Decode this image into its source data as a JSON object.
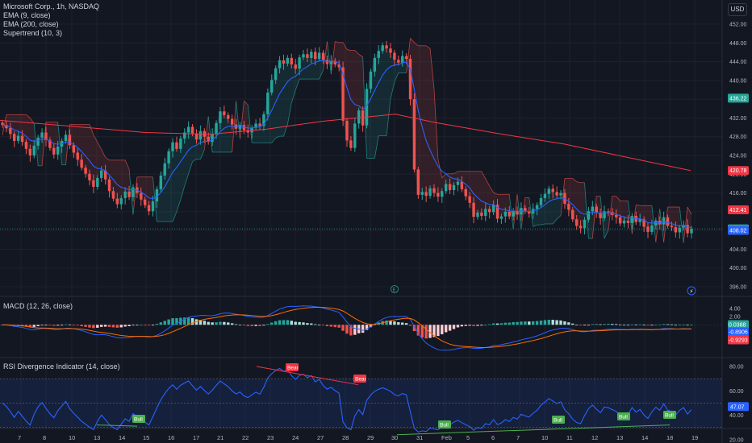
{
  "header": {
    "symbol_line": "Microsoft Corp., 1h, NASDAQ",
    "indicators": [
      "EMA (9, close)",
      "EMA (200, close)",
      "Supertrend (10, 3)"
    ],
    "currency_button": "USD"
  },
  "macd_pane": {
    "title": "MACD (12, 26, close)"
  },
  "rsi_pane": {
    "title": "RSI Divergence Indicator (14, close)"
  },
  "colors": {
    "bg": "#131722",
    "up": "#26a69a",
    "down": "#ef5350",
    "ema9": "#2962ff",
    "ema200": "#f23645",
    "rsi": "#2962ff",
    "bull": "#4caf50",
    "bear": "#f23645"
  },
  "chart_data": [
    {
      "type": "candlestick",
      "x_tick_labels": [
        "7",
        "8",
        "10",
        "13",
        "14",
        "15",
        "16",
        "17",
        "21",
        "22",
        "23",
        "24",
        "27",
        "28",
        "29",
        "30",
        "31",
        "Feb",
        "5",
        "6",
        "7",
        "10",
        "11",
        "12",
        "13",
        "14",
        "18",
        "19"
      ],
      "y_tick_labels": [
        "452.00",
        "448.00",
        "444.00",
        "440.00",
        "436.00",
        "432.00",
        "428.00",
        "424.00",
        "420.00",
        "416.00",
        "412.00",
        "408.00",
        "404.00",
        "400.00",
        "396.00"
      ],
      "ylim": [
        394,
        454
      ],
      "price_tags": [
        {
          "value": 436.22,
          "label": "436.22",
          "color": "#26a69a"
        },
        {
          "value": 420.78,
          "label": "420.78",
          "color": "#f23645"
        },
        {
          "value": 412.41,
          "label": "412.41",
          "color": "#f23645"
        },
        {
          "value": 408.35,
          "label": "408.35",
          "color": "#26a69a"
        },
        {
          "value": 408.02,
          "label": "408.02",
          "color": "#2962ff"
        }
      ],
      "close": [
        430.5,
        429.8,
        428.6,
        427.1,
        428.2,
        426.9,
        425.4,
        424.0,
        426.1,
        427.8,
        428.9,
        427.3,
        425.6,
        424.2,
        425.9,
        427.1,
        428.4,
        426.2,
        424.6,
        423.1,
        421.4,
        420.1,
        418.7,
        417.3,
        419.2,
        420.8,
        418.9,
        416.4,
        414.8,
        413.6,
        414.9,
        416.3,
        415.1,
        417.2,
        416.0,
        414.6,
        413.4,
        412.1,
        414.2,
        416.8,
        419.7,
        422.3,
        424.9,
        426.8,
        425.4,
        427.6,
        428.9,
        430.1,
        428.7,
        427.4,
        429.2,
        428.0,
        426.9,
        428.6,
        430.9,
        433.4,
        432.6,
        431.8,
        430.6,
        429.7,
        430.5,
        429.4,
        428.9,
        429.9,
        430.8,
        430.3,
        432.8,
        437.4,
        440.1,
        442.6,
        444.3,
        443.6,
        444.8,
        443.4,
        442.5,
        444.9,
        445.6,
        444.8,
        446.1,
        444.6,
        445.9,
        444.4,
        443.5,
        444.2,
        443.4,
        442.8,
        431.4,
        427.2,
        425.6,
        430.8,
        433.6,
        430.4,
        438.2,
        441.9,
        444.8,
        446.3,
        447.5,
        446.8,
        445.9,
        444.4,
        443.8,
        445.2,
        444.6,
        436.0,
        421.0,
        415.6,
        416.2,
        415.4,
        417.0,
        416.0,
        415.2,
        416.4,
        417.9,
        416.6,
        417.7,
        418.4,
        416.8,
        415.3,
        413.9,
        410.9,
        411.8,
        411.1,
        412.6,
        411.9,
        413.5,
        410.5,
        411.0,
        412.0,
        411.0,
        412.2,
        411.4,
        412.8,
        412.1,
        411.6,
        412.6,
        413.4,
        414.9,
        415.8,
        416.9,
        416.2,
        415.5,
        416.0,
        413.7,
        412.4,
        410.4,
        409.0,
        408.5,
        410.3,
        412.1,
        413.1,
        411.8,
        410.6,
        412.1,
        411.9,
        411.3,
        410.8,
        409.5,
        410.1,
        409.6,
        411.1,
        409.8,
        410.4,
        408.8,
        407.7,
        409.1,
        410.1,
        409.3,
        410.8,
        409.0,
        408.7,
        407.6,
        408.6,
        409.2,
        407.4,
        408.35
      ]
    },
    {
      "type": "macd",
      "y_tick_labels": [
        "4.00",
        "2.00",
        "-2.00",
        "-4.00"
      ],
      "ylim": [
        -5.5,
        5.2
      ],
      "value_tags": [
        {
          "value": 0.0388,
          "label": "0.0388",
          "color": "#26a69a"
        },
        {
          "value": -0.8906,
          "label": "-0.8906",
          "color": "#2962ff"
        },
        {
          "value": -0.9293,
          "label": "-0.9293",
          "color": "#f23645"
        }
      ]
    },
    {
      "type": "rsi",
      "y_tick_labels": [
        "80.00",
        "60.00",
        "40.00",
        "20.00"
      ],
      "ylim": [
        20,
        88
      ],
      "band": [
        30,
        70
      ],
      "value_tag": {
        "value": 47.07,
        "label": "47.07"
      },
      "annotations": [
        {
          "text": "Bull",
          "kind": "bull"
        },
        {
          "text": "Bear",
          "kind": "bear"
        },
        {
          "text": "Bear",
          "kind": "bear"
        },
        {
          "text": "Bull",
          "kind": "bull"
        },
        {
          "text": "Bull",
          "kind": "bull"
        },
        {
          "text": "Bull",
          "kind": "bull"
        },
        {
          "text": "Bull",
          "kind": "bull"
        }
      ]
    }
  ]
}
